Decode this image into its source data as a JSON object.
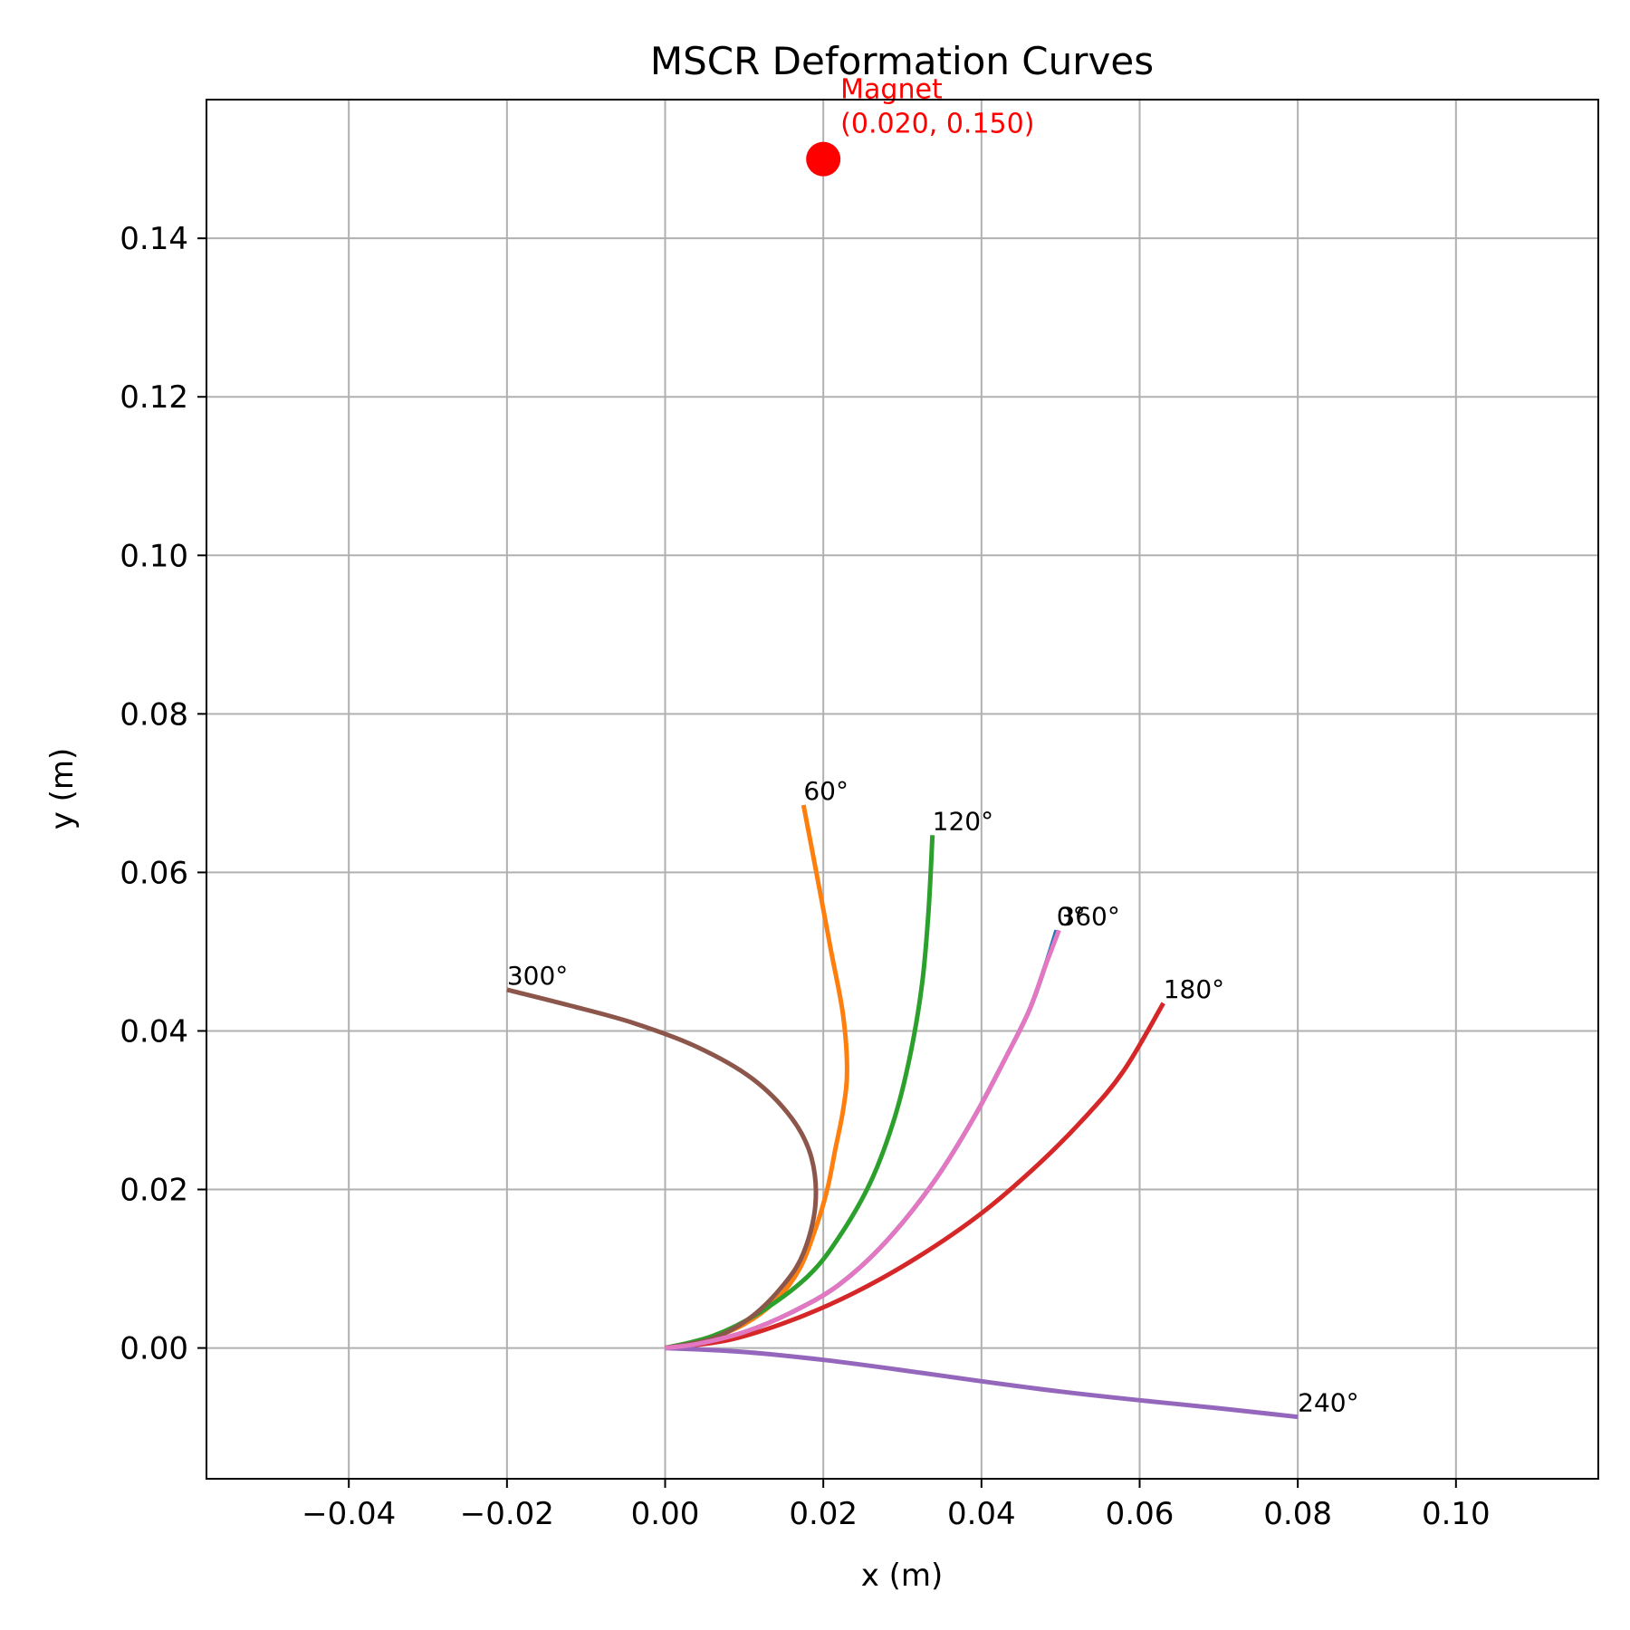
{
  "chart_data": {
    "type": "line",
    "title": "MSCR Deformation Curves",
    "xlabel": "x (m)",
    "ylabel": "y (m)",
    "xlim": [
      -0.058,
      0.118
    ],
    "ylim": [
      -0.0165,
      0.1575
    ],
    "xticks": [
      -0.04,
      -0.02,
      0.0,
      0.02,
      0.04,
      0.06,
      0.08,
      0.1
    ],
    "xtick_labels": [
      "−0.04",
      "−0.02",
      "0.00",
      "0.02",
      "0.04",
      "0.06",
      "0.08",
      "0.10"
    ],
    "yticks": [
      0.0,
      0.02,
      0.04,
      0.06,
      0.08,
      0.1,
      0.12,
      0.14
    ],
    "ytick_labels": [
      "0.00",
      "0.02",
      "0.04",
      "0.06",
      "0.08",
      "0.10",
      "0.12",
      "0.14"
    ],
    "grid": true,
    "magnet": {
      "x": 0.02,
      "y": 0.15,
      "color": "#ff0000",
      "label_line1": "Magnet",
      "label_line2": "(0.020, 0.150)"
    },
    "series": [
      {
        "label": "0°",
        "color": "#1f77b4",
        "x": [
          0,
          0.004,
          0.01,
          0.016,
          0.022,
          0.028,
          0.034,
          0.039,
          0.043,
          0.046,
          0.048,
          0.0495
        ],
        "y": [
          0,
          0.0005,
          0.002,
          0.0045,
          0.008,
          0.0135,
          0.021,
          0.029,
          0.0365,
          0.0425,
          0.048,
          0.0527
        ]
      },
      {
        "label": "60°",
        "color": "#ff7f0e",
        "x": [
          0,
          0.005,
          0.01,
          0.014,
          0.017,
          0.019,
          0.0205,
          0.0215,
          0.0225,
          0.023,
          0.0225,
          0.021,
          0.0195,
          0.0175
        ],
        "y": [
          0,
          0.001,
          0.003,
          0.006,
          0.01,
          0.015,
          0.02,
          0.025,
          0.03,
          0.035,
          0.042,
          0.05,
          0.058,
          0.0685
        ]
      },
      {
        "label": "120°",
        "color": "#2ca02c",
        "x": [
          0,
          0.006,
          0.012,
          0.018,
          0.022,
          0.026,
          0.029,
          0.031,
          0.0325,
          0.0333,
          0.0338
        ],
        "y": [
          0,
          0.0015,
          0.0045,
          0.009,
          0.014,
          0.021,
          0.029,
          0.037,
          0.046,
          0.055,
          0.0647
        ]
      },
      {
        "label": "180°",
        "color": "#d62728",
        "x": [
          0,
          0.008,
          0.016,
          0.024,
          0.032,
          0.04,
          0.047,
          0.053,
          0.058,
          0.063
        ],
        "y": [
          0,
          0.001,
          0.0035,
          0.007,
          0.0115,
          0.017,
          0.023,
          0.029,
          0.035,
          0.0435
        ]
      },
      {
        "label": "240°",
        "color": "#9467bd",
        "x": [
          0,
          0.01,
          0.02,
          0.03,
          0.04,
          0.05,
          0.06,
          0.07,
          0.08
        ],
        "y": [
          0,
          -0.0005,
          -0.0015,
          -0.0028,
          -0.0042,
          -0.0055,
          -0.0066,
          -0.0076,
          -0.0087
        ]
      },
      {
        "label": "300°",
        "color": "#8c564b",
        "x": [
          0,
          0.006,
          0.011,
          0.015,
          0.0175,
          0.019,
          0.0185,
          0.016,
          0.011,
          0.004,
          -0.004,
          -0.012,
          -0.02
        ],
        "y": [
          0,
          0.0012,
          0.004,
          0.008,
          0.012,
          0.018,
          0.024,
          0.029,
          0.034,
          0.038,
          0.041,
          0.0432,
          0.0452
        ]
      },
      {
        "label": "360°",
        "color": "#e377c2",
        "x": [
          0,
          0.004,
          0.01,
          0.016,
          0.022,
          0.028,
          0.034,
          0.039,
          0.043,
          0.046,
          0.048,
          0.0498
        ],
        "y": [
          0,
          0.0005,
          0.002,
          0.0045,
          0.008,
          0.0135,
          0.021,
          0.029,
          0.0365,
          0.0425,
          0.048,
          0.0527
        ]
      }
    ]
  }
}
